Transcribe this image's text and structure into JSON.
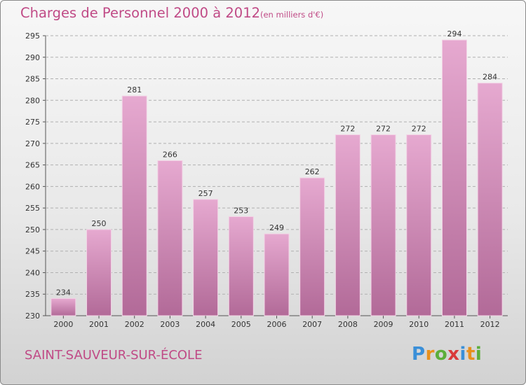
{
  "header": {
    "title": "Charges de Personnel 2000 à 2012",
    "unit": "(en milliers d'€)"
  },
  "footer": {
    "commune": "SAINT-SAUVEUR-SUR-ÉCOLE",
    "logo": "Proxiti"
  },
  "colors": {
    "title": "#c04a86",
    "bar_top": "#e6a9d0",
    "bar_bottom": "#b26a98",
    "grid": "#b0b0b0"
  },
  "chart_data": {
    "type": "bar",
    "title": "Charges de Personnel 2000 à 2012",
    "subtitle": "(en milliers d'€)",
    "categories": [
      "2000",
      "2001",
      "2002",
      "2003",
      "2004",
      "2005",
      "2006",
      "2007",
      "2008",
      "2009",
      "2010",
      "2011",
      "2012"
    ],
    "values": [
      234,
      250,
      281,
      266,
      257,
      253,
      249,
      262,
      272,
      272,
      272,
      294,
      284
    ],
    "ylim": [
      230,
      295
    ],
    "yticks": [
      230,
      235,
      240,
      245,
      250,
      255,
      260,
      265,
      270,
      275,
      280,
      285,
      290,
      295
    ],
    "grid": true,
    "legend": "none"
  }
}
